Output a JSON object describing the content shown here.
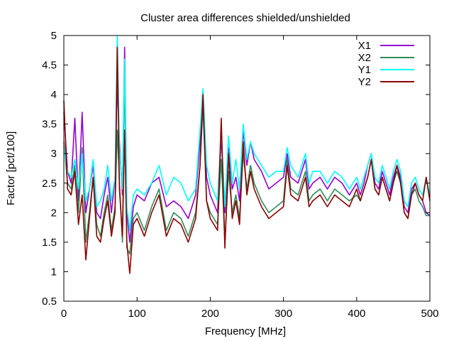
{
  "chart_data": {
    "type": "line",
    "title": "Cluster area differences shielded/unshielded",
    "xlabel": "Frequency [MHz]",
    "ylabel": "Factor [pct/100]",
    "xlim": [
      0,
      500
    ],
    "ylim": [
      0.5,
      5
    ],
    "x_ticks": [
      0,
      100,
      200,
      300,
      400,
      500
    ],
    "y_ticks": [
      0.5,
      1,
      1.5,
      2,
      2.5,
      3,
      3.5,
      4,
      4.5,
      5
    ],
    "x_tick_labels": [
      "0",
      "100",
      "200",
      "300",
      "400",
      "500"
    ],
    "y_tick_labels": [
      "0.5",
      "1",
      "1.5",
      "2",
      "2.5",
      "3",
      "3.5",
      "4",
      "4.5",
      "5"
    ],
    "grid": false,
    "legend_position": "top-right",
    "x": [
      0,
      5,
      10,
      15,
      20,
      25,
      30,
      35,
      40,
      45,
      50,
      55,
      60,
      65,
      70,
      73,
      76,
      80,
      83,
      86,
      90,
      95,
      100,
      110,
      120,
      130,
      140,
      150,
      160,
      170,
      180,
      186,
      190,
      195,
      200,
      210,
      215,
      220,
      225,
      230,
      235,
      240,
      245,
      250,
      255,
      260,
      270,
      280,
      290,
      300,
      305,
      310,
      320,
      330,
      335,
      340,
      350,
      360,
      370,
      380,
      390,
      400,
      405,
      410,
      415,
      420,
      425,
      430,
      435,
      440,
      445,
      450,
      455,
      460,
      465,
      470,
      475,
      480,
      485,
      490,
      495,
      500
    ],
    "series": [
      {
        "name": "X1",
        "color": "#9400d3",
        "values": [
          3.7,
          2.7,
          2.5,
          3.6,
          2.2,
          3.7,
          2.0,
          2.4,
          2.8,
          2.0,
          1.9,
          2.3,
          2.6,
          2.0,
          2.6,
          4.2,
          3.2,
          2.3,
          4.8,
          2.0,
          1.5,
          2.1,
          2.3,
          2.2,
          2.5,
          2.6,
          2.1,
          2.2,
          2.1,
          1.9,
          2.3,
          3.2,
          4.0,
          2.6,
          2.3,
          2.0,
          3.3,
          2.0,
          3.1,
          2.4,
          2.6,
          2.2,
          3.4,
          2.8,
          3.2,
          2.9,
          2.7,
          2.4,
          2.5,
          2.6,
          3.0,
          2.6,
          2.5,
          2.9,
          2.4,
          2.5,
          2.6,
          2.4,
          2.6,
          2.5,
          2.3,
          2.5,
          2.3,
          2.5,
          2.8,
          3.0,
          2.5,
          2.4,
          2.7,
          2.5,
          2.3,
          2.6,
          2.8,
          2.6,
          2.1,
          2.0,
          2.4,
          2.5,
          2.3,
          2.2,
          2.0,
          1.95
        ]
      },
      {
        "name": "X2",
        "color": "#2e8b57",
        "values": [
          3.2,
          2.5,
          2.4,
          2.8,
          2.0,
          3.1,
          1.5,
          2.0,
          2.6,
          1.8,
          1.6,
          2.0,
          2.3,
          1.7,
          2.1,
          3.4,
          2.5,
          1.5,
          4.5,
          1.4,
          1.3,
          1.9,
          2.0,
          1.7,
          2.1,
          2.4,
          1.7,
          2.0,
          1.9,
          1.6,
          2.0,
          2.8,
          3.8,
          2.2,
          2.0,
          1.8,
          2.9,
          1.5,
          2.7,
          2.0,
          2.3,
          1.9,
          3.0,
          2.4,
          2.8,
          2.5,
          2.2,
          2.0,
          2.1,
          2.2,
          2.9,
          2.4,
          2.3,
          2.7,
          2.2,
          2.3,
          2.4,
          2.2,
          2.4,
          2.3,
          2.2,
          2.3,
          2.2,
          2.4,
          2.6,
          2.9,
          2.4,
          2.3,
          2.6,
          2.4,
          2.2,
          2.5,
          2.7,
          2.5,
          2.0,
          1.9,
          2.3,
          2.4,
          2.2,
          2.1,
          1.95,
          1.95
        ]
      },
      {
        "name": "Y1",
        "color": "#00ffff",
        "values": [
          3.1,
          2.7,
          2.6,
          2.9,
          2.4,
          3.0,
          2.2,
          2.4,
          2.9,
          2.1,
          2.2,
          2.4,
          2.8,
          2.2,
          2.6,
          5.0,
          3.1,
          2.4,
          4.6,
          2.1,
          1.7,
          2.3,
          2.4,
          2.3,
          2.5,
          2.8,
          2.3,
          2.6,
          2.5,
          2.2,
          2.4,
          3.4,
          4.1,
          2.8,
          2.5,
          2.2,
          3.4,
          2.1,
          3.3,
          2.5,
          2.9,
          2.4,
          3.5,
          2.9,
          3.2,
          3.0,
          2.8,
          2.6,
          2.7,
          2.7,
          3.1,
          2.8,
          2.6,
          3.0,
          2.5,
          2.7,
          2.7,
          2.5,
          2.7,
          2.6,
          2.4,
          2.6,
          2.4,
          2.6,
          2.8,
          3.0,
          2.6,
          2.5,
          2.8,
          2.6,
          2.4,
          2.7,
          2.9,
          2.7,
          2.2,
          2.1,
          2.5,
          2.6,
          2.4,
          2.3,
          2.6,
          2.3
        ]
      },
      {
        "name": "Y2",
        "color": "#8b0000",
        "values": [
          3.9,
          2.4,
          2.3,
          2.7,
          1.8,
          2.3,
          1.2,
          1.9,
          2.6,
          1.6,
          1.5,
          1.9,
          2.2,
          1.6,
          2.0,
          4.8,
          2.4,
          1.6,
          3.4,
          1.5,
          0.97,
          1.8,
          1.9,
          1.6,
          2.0,
          2.3,
          1.6,
          1.9,
          1.8,
          1.5,
          1.9,
          2.8,
          4.0,
          2.2,
          1.9,
          1.7,
          3.6,
          1.4,
          3.0,
          1.9,
          2.2,
          1.8,
          3.2,
          2.3,
          2.7,
          2.4,
          2.1,
          1.9,
          2.0,
          2.1,
          2.8,
          2.3,
          2.2,
          2.6,
          2.1,
          2.2,
          2.3,
          2.1,
          2.3,
          2.2,
          2.1,
          2.4,
          2.2,
          2.4,
          2.6,
          2.9,
          2.4,
          2.3,
          2.6,
          2.4,
          2.2,
          2.5,
          2.8,
          2.5,
          2.0,
          1.9,
          2.3,
          2.5,
          2.3,
          2.2,
          2.6,
          2.2
        ]
      }
    ]
  }
}
